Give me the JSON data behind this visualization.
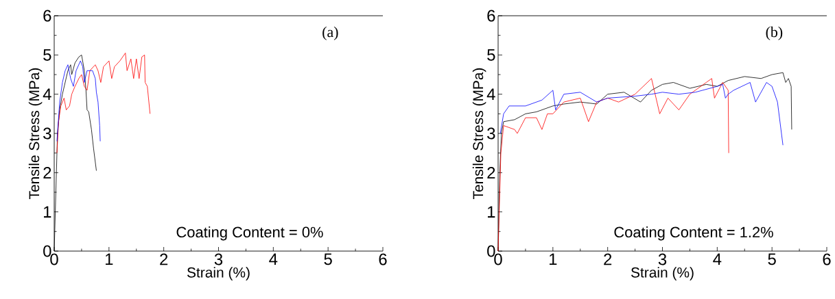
{
  "chart_data": [
    {
      "type": "line",
      "xlabel": "Strain (%)",
      "ylabel": "Tensile Stress (MPa)",
      "xlim": [
        0,
        6
      ],
      "ylim": [
        0,
        6
      ],
      "xticks": [
        0,
        1,
        2,
        3,
        4,
        5,
        6
      ],
      "yticks": [
        0,
        1,
        2,
        3,
        4,
        5,
        6
      ],
      "annotations": [
        "(a)",
        "Coating Content = 0%"
      ],
      "series": [
        {
          "color": "#000000",
          "x": [
            0,
            0.03,
            0.06,
            0.1,
            0.15,
            0.2,
            0.25,
            0.3,
            0.32,
            0.38,
            0.45,
            0.5,
            0.55,
            0.58,
            0.6,
            0.63,
            0.68,
            0.72,
            0.77
          ],
          "values": [
            0,
            1.5,
            3,
            3.6,
            4.0,
            4.3,
            4.6,
            4.75,
            4.5,
            4.8,
            4.95,
            5.0,
            4.6,
            4.1,
            3.6,
            3.55,
            3.1,
            2.6,
            2.05
          ]
        },
        {
          "color": "#ff0000",
          "x": [
            0.05,
            0.08,
            0.12,
            0.18,
            0.22,
            0.28,
            0.32,
            0.38,
            0.45,
            0.5,
            0.55,
            0.6,
            0.65,
            0.75,
            0.8,
            0.85,
            0.9,
            1.0,
            1.05,
            1.1,
            1.2,
            1.3,
            1.33,
            1.4,
            1.45,
            1.5,
            1.55,
            1.6,
            1.65,
            1.66,
            1.7,
            1.75
          ],
          "values": [
            2.5,
            3.3,
            3.7,
            3.9,
            3.6,
            3.7,
            4.0,
            4.2,
            4.4,
            4.5,
            4.2,
            4.1,
            4.6,
            4.75,
            4.6,
            4.3,
            4.7,
            4.85,
            4.4,
            4.7,
            4.85,
            5.05,
            4.6,
            4.9,
            4.4,
            4.9,
            4.4,
            4.95,
            5.0,
            4.3,
            4.2,
            3.5
          ]
        },
        {
          "color": "#0000ff",
          "x": [
            0.05,
            0.1,
            0.15,
            0.2,
            0.25,
            0.3,
            0.35,
            0.4,
            0.48,
            0.52,
            0.55,
            0.6,
            0.7,
            0.75,
            0.77,
            0.8,
            0.83,
            0.84
          ],
          "values": [
            2.8,
            3.8,
            4.3,
            4.6,
            4.75,
            4.4,
            4.2,
            4.6,
            4.85,
            4.7,
            4.3,
            4.6,
            4.6,
            4.4,
            4.05,
            3.8,
            3.2,
            2.8
          ]
        }
      ]
    },
    {
      "type": "line",
      "xlabel": "Strain (%)",
      "ylabel": "Tensile Stress (MPa)",
      "xlim": [
        0,
        6
      ],
      "ylim": [
        0,
        6
      ],
      "xticks": [
        0,
        1,
        2,
        3,
        4,
        5,
        6
      ],
      "yticks": [
        0,
        1,
        2,
        3,
        4,
        5,
        6
      ],
      "annotations": [
        "(b)",
        "Coating Content = 1.2%"
      ],
      "series": [
        {
          "color": "#000000",
          "x": [
            0,
            0.03,
            0.06,
            0.1,
            0.3,
            0.5,
            0.7,
            1.0,
            1.2,
            1.5,
            1.8,
            2.0,
            2.3,
            2.6,
            2.8,
            3.0,
            3.2,
            3.5,
            3.8,
            4.0,
            4.2,
            4.5,
            4.8,
            5.0,
            5.2,
            5.25,
            5.3,
            5.35,
            5.36
          ],
          "values": [
            0,
            2,
            3.0,
            3.3,
            3.35,
            3.5,
            3.55,
            3.7,
            3.75,
            3.8,
            3.75,
            4.0,
            4.05,
            3.8,
            4.1,
            4.25,
            4.3,
            4.15,
            4.25,
            4.2,
            4.35,
            4.45,
            4.4,
            4.5,
            4.55,
            4.3,
            4.4,
            4.2,
            3.1
          ]
        },
        {
          "color": "#ff0000",
          "x": [
            0,
            0.05,
            0.1,
            0.3,
            0.35,
            0.5,
            0.7,
            0.8,
            0.9,
            1.0,
            1.2,
            1.5,
            1.65,
            1.8,
            2.0,
            2.2,
            2.5,
            2.8,
            2.9,
            2.95,
            3.1,
            3.3,
            3.5,
            3.8,
            3.9,
            3.95,
            4.1,
            4.2,
            4.21
          ],
          "values": [
            0,
            2.5,
            3.2,
            3.1,
            3.0,
            3.4,
            3.4,
            3.1,
            3.5,
            3.5,
            3.8,
            3.9,
            3.3,
            3.8,
            3.9,
            3.8,
            4.0,
            4.4,
            3.8,
            3.5,
            3.9,
            3.6,
            4.0,
            4.3,
            4.4,
            3.9,
            4.3,
            4.1,
            2.5
          ]
        },
        {
          "color": "#0000ff",
          "x": [
            0.04,
            0.1,
            0.2,
            0.5,
            0.8,
            1.0,
            1.05,
            1.2,
            1.5,
            1.8,
            2.0,
            2.5,
            2.8,
            3.0,
            3.3,
            3.6,
            4.0,
            4.1,
            4.15,
            4.2,
            4.3,
            4.6,
            4.7,
            4.9,
            5.0,
            5.1,
            5.2
          ],
          "values": [
            3.0,
            3.5,
            3.7,
            3.7,
            3.85,
            4.1,
            3.6,
            4.0,
            4.05,
            3.8,
            3.9,
            3.95,
            4.0,
            4.05,
            4.0,
            4.05,
            4.2,
            4.25,
            3.9,
            4.0,
            4.1,
            4.3,
            3.8,
            4.3,
            4.2,
            3.8,
            2.7
          ]
        }
      ]
    }
  ]
}
